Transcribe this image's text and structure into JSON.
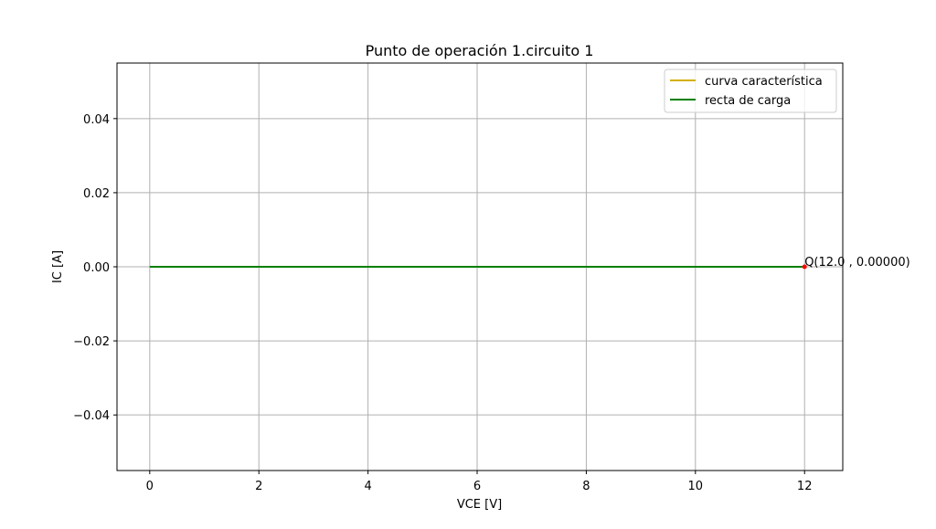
{
  "chart_data": {
    "type": "line",
    "title": "Punto de operación 1.circuito 1",
    "xlabel": "VCE [V]",
    "ylabel": "IC [A]",
    "xlim": [
      -0.6,
      12.7
    ],
    "ylim": [
      -0.055,
      0.055
    ],
    "xticks": [
      0,
      2,
      4,
      6,
      8,
      10,
      12
    ],
    "xtick_labels": [
      "0",
      "2",
      "4",
      "6",
      "8",
      "10",
      "12"
    ],
    "yticks": [
      -0.04,
      -0.02,
      0.0,
      0.02,
      0.04
    ],
    "ytick_labels": [
      "−0.04",
      "−0.02",
      "0.00",
      "0.02",
      "0.04"
    ],
    "grid": true,
    "legend_position": "top-right",
    "series": [
      {
        "name": "curva característica",
        "color": "#d4b000",
        "x": [
          0,
          12
        ],
        "y": [
          0,
          0
        ]
      },
      {
        "name": "recta de carga",
        "color": "#008000",
        "x": [
          0,
          12
        ],
        "y": [
          0,
          0
        ]
      }
    ],
    "points": [
      {
        "label": "Q(12.0 , 0.00000)",
        "x": 12.0,
        "y": 0.0,
        "color": "#ff0000"
      }
    ]
  }
}
